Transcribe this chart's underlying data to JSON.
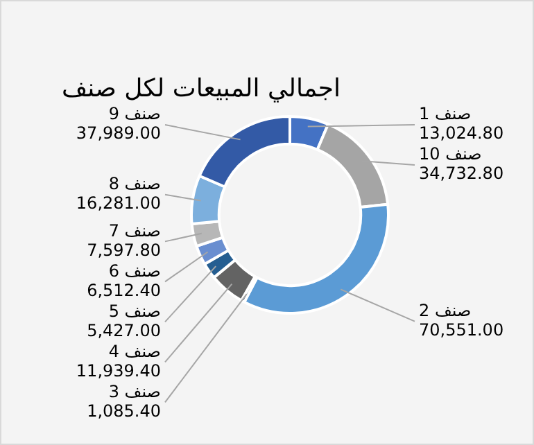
{
  "chart_data": {
    "type": "donut",
    "title": "اجمالي المبيعات لكل صنف",
    "categories": [
      "صنف 1",
      "صنف 10",
      "صنف 2",
      "صنف 3",
      "صنف 4",
      "صنف 5",
      "صنف 6",
      "صنف 7",
      "صنف 8",
      "صنف 9"
    ],
    "values": [
      13024.8,
      34732.8,
      70551.0,
      1085.4,
      11939.4,
      5427.0,
      6512.4,
      7597.8,
      16281.0,
      37989.0
    ],
    "value_labels": [
      "13,024.80",
      "34,732.80",
      "70,551.00",
      "1,085.40",
      "11,939.40",
      "5,427.00",
      "6,512.40",
      "7,597.80",
      "16,281.00",
      "37,989.00"
    ],
    "colors": [
      "#4472c4",
      "#a5a5a5",
      "#5b9bd5",
      "#264478",
      "#636363",
      "#255e91",
      "#698ed0",
      "#b7b7b7",
      "#7cafdd",
      "#335aa6"
    ]
  }
}
